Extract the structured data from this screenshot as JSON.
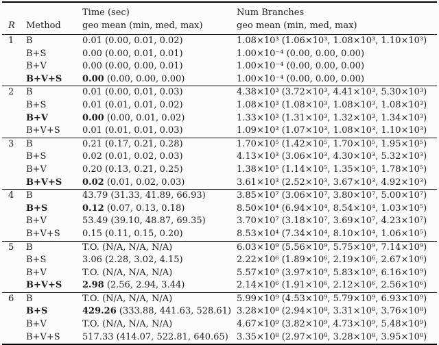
{
  "header": {
    "r": "R",
    "method": "Method",
    "time_title": "Time (sec)",
    "time_sub": "geo mean (min, med, max)",
    "branches_title": "Num Branches",
    "branches_sub": "geo mean (min, med, max)"
  },
  "groups": [
    {
      "r": "1",
      "rows": [
        {
          "method": "B",
          "bold": false,
          "time_geo": "0.01",
          "time_rest": "(0.00, 0.01, 0.02)",
          "br_geo": "1.08×10³",
          "br_rest": "(1.06×10³, 1.08×10³, 1.10×10³)"
        },
        {
          "method": "B+S",
          "bold": false,
          "time_geo": "0.00",
          "time_rest": "(0.00, 0.01, 0.01)",
          "br_geo": "1.00×10⁻⁴",
          "br_rest": "(0.00, 0.00, 0.00)"
        },
        {
          "method": "B+V",
          "bold": false,
          "time_geo": "0.00",
          "time_rest": "(0.00, 0.00, 0.01)",
          "br_geo": "1.00×10⁻⁴",
          "br_rest": "(0.00, 0.00, 0.00)"
        },
        {
          "method": "B+V+S",
          "bold": true,
          "time_geo": "0.00",
          "time_rest": "(0.00, 0.00, 0.00)",
          "br_geo": "1.00×10⁻⁴",
          "br_rest": "(0.00, 0.00, 0.00)"
        }
      ]
    },
    {
      "r": "2",
      "rows": [
        {
          "method": "B",
          "bold": false,
          "time_geo": "0.01",
          "time_rest": "(0.00, 0.01, 0.03)",
          "br_geo": "4.38×10³",
          "br_rest": "(3.72×10³, 4.41×10³, 5.30×10³)"
        },
        {
          "method": "B+S",
          "bold": false,
          "time_geo": "0.01",
          "time_rest": "(0.01, 0.01, 0.02)",
          "br_geo": "1.08×10³",
          "br_rest": "(1.08×10³, 1.08×10³, 1.08×10³)"
        },
        {
          "method": "B+V",
          "bold": true,
          "time_geo": "0.00",
          "time_rest": "(0.00, 0.01, 0.02)",
          "br_geo": "1.33×10³",
          "br_rest": "(1.31×10³, 1.32×10³, 1.34×10³)"
        },
        {
          "method": "B+V+S",
          "bold": false,
          "time_geo": "0.01",
          "time_rest": "(0.01, 0.01, 0.03)",
          "br_geo": "1.09×10³",
          "br_rest": "(1.07×10³, 1.08×10³, 1.10×10³)"
        }
      ]
    },
    {
      "r": "3",
      "rows": [
        {
          "method": "B",
          "bold": false,
          "time_geo": "0.21",
          "time_rest": "(0.17, 0.21, 0.28)",
          "br_geo": "1.70×10⁵",
          "br_rest": "(1.42×10⁵, 1.70×10⁵, 1.95×10⁵)"
        },
        {
          "method": "B+S",
          "bold": false,
          "time_geo": "0.02",
          "time_rest": "(0.01, 0.02, 0.03)",
          "br_geo": "4.13×10³",
          "br_rest": "(3.06×10³, 4.30×10³, 5.32×10³)"
        },
        {
          "method": "B+V",
          "bold": false,
          "time_geo": "0.20",
          "time_rest": "(0.13, 0.21, 0.25)",
          "br_geo": "1.38×10⁵",
          "br_rest": "(1.14×10⁵, 1.35×10⁵, 1.78×10⁵)"
        },
        {
          "method": "B+V+S",
          "bold": true,
          "time_geo": "0.02",
          "time_rest": "(0.01, 0.02, 0.03)",
          "br_geo": "3.61×10³",
          "br_rest": "(2.52×10³, 3.67×10³, 4.92×10³)"
        }
      ]
    },
    {
      "r": "4",
      "rows": [
        {
          "method": "B",
          "bold": false,
          "time_geo": "43.79",
          "time_rest": "(31.33, 41.89, 66.93)",
          "br_geo": "3.85×10⁷",
          "br_rest": "(3.06×10⁷, 3.80×10⁷, 5.00×10⁷)"
        },
        {
          "method": "B+S",
          "bold": true,
          "time_geo": "0.12",
          "time_rest": "(0.07, 0.13, 0.18)",
          "br_geo": "8.50×10⁴",
          "br_rest": "(6.94×10⁴, 8.54×10⁴, 1.03×10⁵)"
        },
        {
          "method": "B+V",
          "bold": false,
          "time_geo": "53.49",
          "time_rest": "(39.10, 48.87, 69.35)",
          "br_geo": "3.70×10⁷",
          "br_rest": "(3.18×10⁷, 3.69×10⁷, 4.23×10⁷)"
        },
        {
          "method": "B+V+S",
          "bold": false,
          "time_geo": "0.15",
          "time_rest": "(0.11, 0.15, 0.20)",
          "br_geo": "8.53×10⁴",
          "br_rest": "(7.34×10⁴, 8.10×10⁴, 1.06×10⁵)"
        }
      ]
    },
    {
      "r": "5",
      "rows": [
        {
          "method": "B",
          "bold": false,
          "time_geo": "T.O.",
          "time_rest": "(N/A, N/A, N/A)",
          "br_geo": "6.03×10⁹",
          "br_rest": "(5.56×10⁹, 5.75×10⁹, 7.14×10⁹)"
        },
        {
          "method": "B+S",
          "bold": false,
          "time_geo": "3.06",
          "time_rest": "(2.28, 3.02, 4.15)",
          "br_geo": "2.22×10⁶",
          "br_rest": "(1.89×10⁶, 2.19×10⁶, 2.67×10⁶)"
        },
        {
          "method": "B+V",
          "bold": false,
          "time_geo": "T.O.",
          "time_rest": "(N/A, N/A, N/A)",
          "br_geo": "5.57×10⁹",
          "br_rest": "(3.97×10⁹, 5.83×10⁹, 6.16×10⁹)"
        },
        {
          "method": "B+V+S",
          "bold": true,
          "time_geo": "2.98",
          "time_rest": "(2.56, 2.94, 3.44)",
          "br_geo": "2.14×10⁶",
          "br_rest": "(1.91×10⁶, 2.12×10⁶, 2.56×10⁶)"
        }
      ]
    },
    {
      "r": "6",
      "rows": [
        {
          "method": "B",
          "bold": false,
          "time_geo": "T.O.",
          "time_rest": "(N/A, N/A, N/A)",
          "br_geo": "5.99×10⁹",
          "br_rest": "(4.53×10⁹, 5.79×10⁹, 6.93×10⁹)"
        },
        {
          "method": "B+S",
          "bold": true,
          "time_geo": "429.26",
          "time_rest": "(333.88, 441.63, 528.61)",
          "br_geo": "3.28×10⁸",
          "br_rest": "(2.94×10⁸, 3.31×10⁸, 3.76×10⁸)"
        },
        {
          "method": "B+V",
          "bold": false,
          "time_geo": "T.O.",
          "time_rest": "(N/A, N/A, N/A)",
          "br_geo": "4.67×10⁹",
          "br_rest": "(3.82×10⁹, 4.73×10⁹, 5.48×10⁹)"
        },
        {
          "method": "B+V+S",
          "bold": false,
          "time_geo": "517.33",
          "time_rest": "(414.07, 522.81, 640.65)",
          "br_geo": "3.35×10⁸",
          "br_rest": "(2.97×10⁸, 3.28×10⁸, 3.95×10⁸)"
        }
      ]
    }
  ]
}
